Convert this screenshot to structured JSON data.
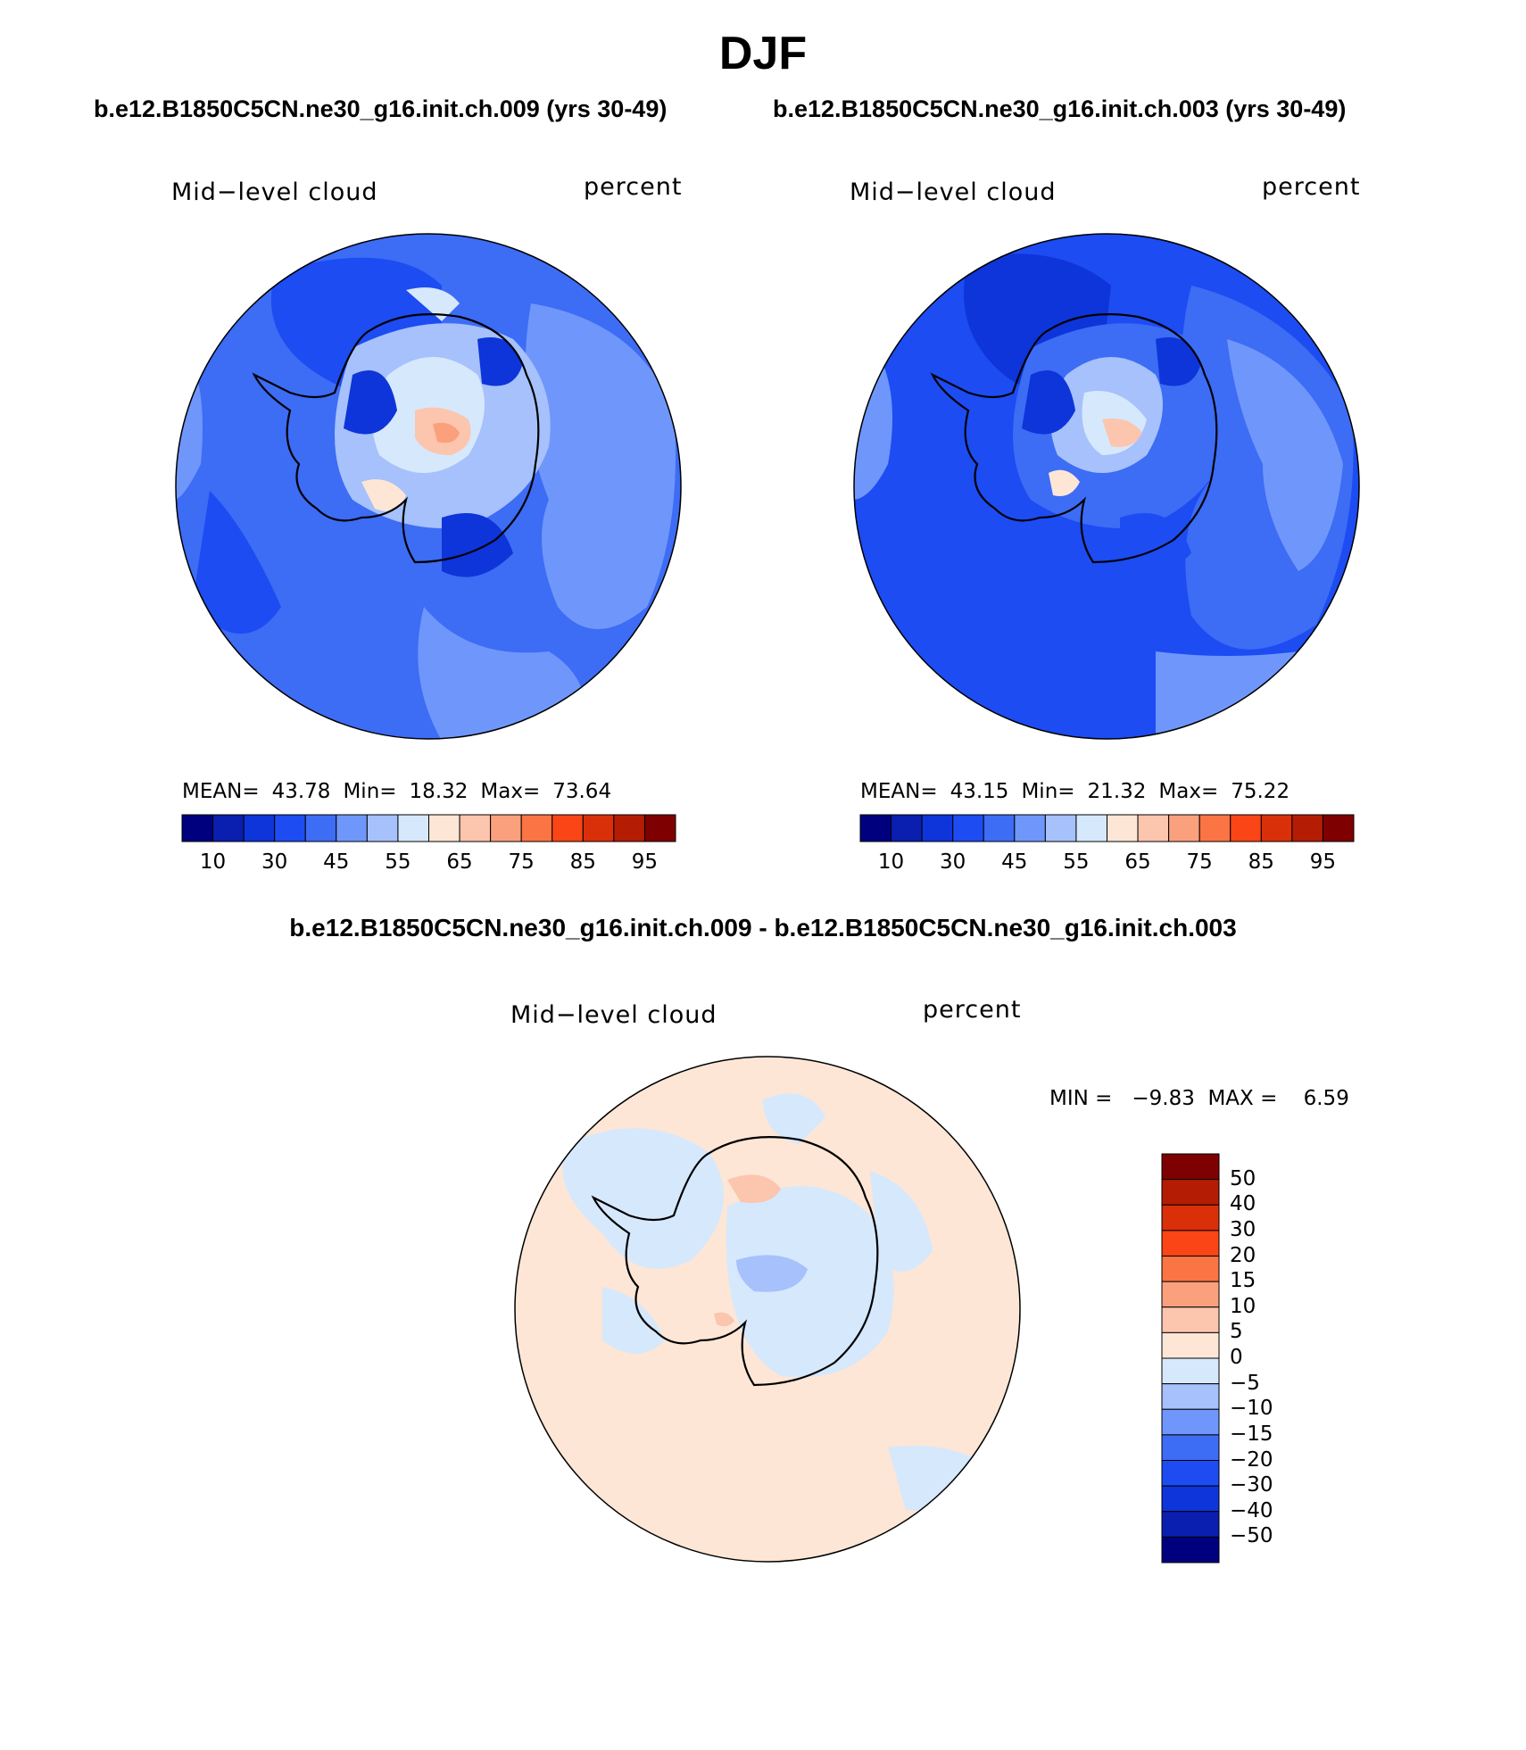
{
  "figure": {
    "season": "DJF",
    "case_a_title": "b.e12.B1850C5CN.ne30_g16.init.ch.009 (yrs 30-49)",
    "case_b_title": "b.e12.B1850C5CN.ne30_g16.init.ch.003 (yrs 30-49)",
    "diff_title": "b.e12.B1850C5CN.ne30_g16.init.ch.009 - b.e12.B1850C5CN.ne30_g16.init.ch.003"
  },
  "panels": {
    "a": {
      "variable": "Mid−level cloud",
      "units": "percent",
      "mean_label": "MEAN=",
      "mean": "43.78",
      "min_label": "Min=",
      "min": "18.32",
      "max_label": "Max=",
      "max": "73.64"
    },
    "b": {
      "variable": "Mid−level cloud",
      "units": "percent",
      "mean_label": "MEAN=",
      "mean": "43.15",
      "min_label": "Min=",
      "min": "21.32",
      "max_label": "Max=",
      "max": "75.22"
    },
    "diff": {
      "variable": "Mid−level cloud",
      "units": "percent",
      "minmax_text": "MIN =   −9.83  MAX =    6.59"
    }
  },
  "abs_colorbar": {
    "colors": [
      "#00007f",
      "#0a1fb0",
      "#0d35d9",
      "#1c4cf2",
      "#3d6cf5",
      "#6f97fb",
      "#a6c1fb",
      "#d6e8fc",
      "#fde6d6",
      "#fcc5ad",
      "#fba07d",
      "#fb7443",
      "#fa4516",
      "#d9300a",
      "#b41d03",
      "#7f0000"
    ],
    "labels": [
      "10",
      "30",
      "45",
      "55",
      "65",
      "75",
      "85",
      "95"
    ]
  },
  "diff_colorbar": {
    "colors": [
      "#7f0000",
      "#b41d03",
      "#d9300a",
      "#fa4516",
      "#fb7443",
      "#fba07d",
      "#fcc5ad",
      "#fde6d6",
      "#d6e8fc",
      "#a6c1fb",
      "#6f97fb",
      "#3d6cf5",
      "#1c4cf2",
      "#0d35d9",
      "#0a1fb0",
      "#00007f"
    ],
    "labels": [
      "50",
      "40",
      "30",
      "20",
      "15",
      "10",
      "5",
      "0",
      "−5",
      "−10",
      "−15",
      "−20",
      "−30",
      "−40",
      "−50"
    ]
  }
}
